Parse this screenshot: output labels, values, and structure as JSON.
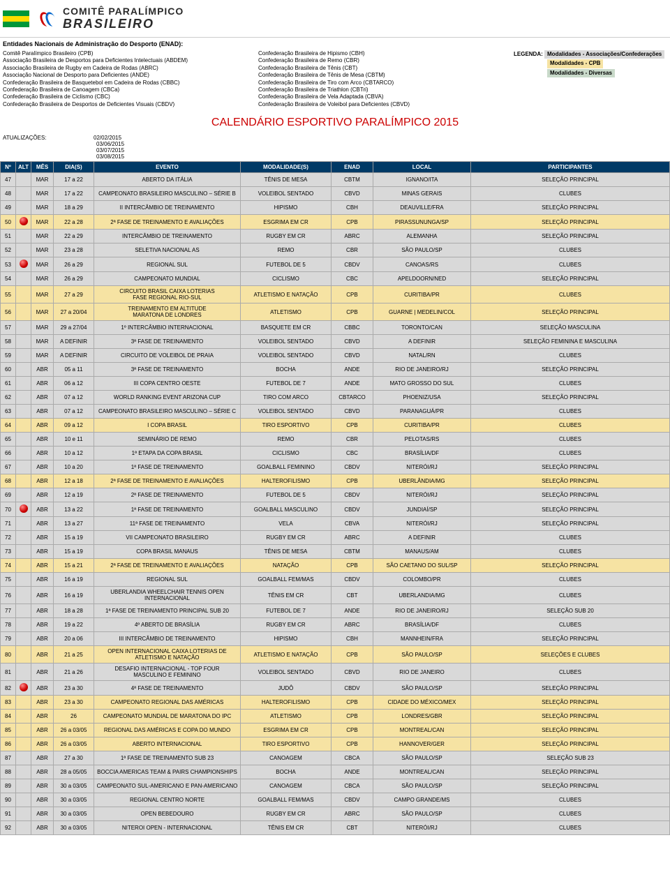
{
  "logo": {
    "line1": "COMITÊ PARALÍMPICO",
    "line2": "BRASILEIRO"
  },
  "flag_colors": [
    "#009739",
    "#fedd00",
    "#009739"
  ],
  "section_title": "Entidades Nacionais de Administração do Desporto (ENAD):",
  "entities_col1": [
    "Comitê Paralímpico Brasileiro (CPB)",
    "Associação Brasileira de Desportos para Deficientes Intelectuais (ABDEM)",
    "Associação Brasileira de Rugby em Cadeira de Rodas (ABRC)",
    "Associação Nacional de Desporto para Deficientes (ANDE)",
    "Confederação Brasileira de Basquetebol em Cadeira de Rodas (CBBC)",
    "Confederação Brasileira de Canoagem (CBCa)",
    "Confederação Brasileira de Ciclismo (CBC)",
    "Confederação Brasileira de Desportos de Deficientes Visuais (CBDV)"
  ],
  "entities_col2": [
    "Confederação Brasileira de Hipismo (CBH)",
    "Confederação Brasileira de Remo (CBR)",
    "Confederação Brasileira de Tênis (CBT)",
    "Confederação Brasileira de Tênis de Mesa (CBTM)",
    "Confederação Brasileira de Tiro com Arco (CBTARCO)",
    "Confederação Brasileira de Triathlon (CBTri)",
    "Confederação Brasileira de Vela Adaptada (CBVA)",
    "Confederação Brasileira de Voleibol para Deficientes (CBVD)"
  ],
  "legend_label": "LEGENDA:",
  "legend": [
    {
      "text": "Modalidades - Associações/Confederações",
      "bg": "#d9d9d9",
      "fg": "#000"
    },
    {
      "text": "Modalidades - CPB",
      "bg": "#f6e3a3",
      "fg": "#000"
    },
    {
      "text": "Modalidades - Diversas",
      "bg": "#c9daca",
      "fg": "#000"
    }
  ],
  "calendar_title": "CALENDÁRIO ESPORTIVO PARALÍMPICO 2015",
  "updates_label": "ATUALIZAÇÕES:",
  "updates": [
    "02/02/2015",
    "03/06/2015",
    "03/07/2015",
    "03/08/2015"
  ],
  "columns": [
    "Nº",
    "ALT",
    "MÊS",
    "DIA(S)",
    "EVENTO",
    "MODALIDADE(S)",
    "ENAD",
    "LOCAL",
    "PARTICIPANTES"
  ],
  "row_bgs": {
    "assoc": "#d9d9d9",
    "cpb": "#f6e3a3",
    "div": "#c9daca",
    "plain": "#ffffff"
  },
  "rows": [
    {
      "n": "47",
      "alt": false,
      "mes": "MAR",
      "dias": "17 a 22",
      "evento": "ABERTO DA ITÁLIA",
      "mod": "TÊNIS DE MESA",
      "enad": "CBTM",
      "local": "IGNANO/ITA",
      "part": "SELEÇÃO PRINCIPAL",
      "bg": "assoc"
    },
    {
      "n": "48",
      "alt": false,
      "mes": "MAR",
      "dias": "17 a 22",
      "evento": "CAMPEONATO BRASILEIRO MASCULINO – SÉRIE B",
      "mod": "VOLEIBOL SENTADO",
      "enad": "CBVD",
      "local": "MINAS GERAIS",
      "part": "CLUBES",
      "bg": "assoc"
    },
    {
      "n": "49",
      "alt": false,
      "mes": "MAR",
      "dias": "18 a 29",
      "evento": "II INTERCÂMBIO DE TREINAMENTO",
      "mod": "HIPISMO",
      "enad": "CBH",
      "local": "DEAUVILLE/FRA",
      "part": "SELEÇÃO PRINCIPAL",
      "bg": "assoc"
    },
    {
      "n": "50",
      "alt": true,
      "mes": "MAR",
      "dias": "22 a 28",
      "evento": "2ª FASE DE TREINAMENTO E AVALIAÇÕES",
      "mod": "ESGRIMA EM CR",
      "enad": "CPB",
      "local": "PIRASSUNUNGA/SP",
      "part": "SELEÇÃO PRINCIPAL",
      "bg": "cpb"
    },
    {
      "n": "51",
      "alt": false,
      "mes": "MAR",
      "dias": "22 a 29",
      "evento": "INTERCÂMBIO DE TREINAMENTO",
      "mod": "RUGBY EM CR",
      "enad": "ABRC",
      "local": "ALEMANHA",
      "part": "SELEÇÃO PRINCIPAL",
      "bg": "assoc"
    },
    {
      "n": "52",
      "alt": false,
      "mes": "MAR",
      "dias": "23 a 28",
      "evento": "SELETIVA NACIONAL AS",
      "mod": "REMO",
      "enad": "CBR",
      "local": "SÃO PAULO/SP",
      "part": "CLUBES",
      "bg": "assoc"
    },
    {
      "n": "53",
      "alt": true,
      "mes": "MAR",
      "dias": "26 a 29",
      "evento": "REGIONAL SUL",
      "mod": "FUTEBOL DE 5",
      "enad": "CBDV",
      "local": "CANOAS/RS",
      "part": "CLUBES",
      "bg": "assoc"
    },
    {
      "n": "54",
      "alt": false,
      "mes": "MAR",
      "dias": "26 a 29",
      "evento": "CAMPEONATO MUNDIAL",
      "mod": "CICLISMO",
      "enad": "CBC",
      "local": "APELDOORN/NED",
      "part": "SELEÇÃO PRINCIPAL",
      "bg": "assoc"
    },
    {
      "n": "55",
      "alt": false,
      "mes": "MAR",
      "dias": "27 a 29",
      "evento": "CIRCUITO BRASIL CAIXA LOTERIAS\nFASE REGIONAL RIO-SUL",
      "mod": "ATLETISMO E NATAÇÃO",
      "enad": "CPB",
      "local": "CURITIBA/PR",
      "part": "CLUBES",
      "bg": "cpb"
    },
    {
      "n": "56",
      "alt": false,
      "mes": "MAR",
      "dias": "27 a 20/04",
      "evento": "TREINAMENTO EM ALTITUDE\nMARATONA DE LONDRES",
      "mod": "ATLETISMO",
      "enad": "CPB",
      "local": "GUARNE | MEDELIN/COL",
      "part": "SELEÇÃO PRINCIPAL",
      "bg": "cpb"
    },
    {
      "n": "57",
      "alt": false,
      "mes": "MAR",
      "dias": "29 a 27/04",
      "evento": "1º INTERCÂMBIO INTERNACIONAL",
      "mod": "BASQUETE EM CR",
      "enad": "CBBC",
      "local": "TORONTO/CAN",
      "part": "SELEÇÃO MASCULINA",
      "bg": "assoc"
    },
    {
      "n": "58",
      "alt": false,
      "mes": "MAR",
      "dias": "A DEFINIR",
      "evento": "3ª FASE DE TREINAMENTO",
      "mod": "VOLEIBOL SENTADO",
      "enad": "CBVD",
      "local": "A DEFINIR",
      "part": "SELEÇÃO FEMININA E MASCULINA",
      "bg": "assoc"
    },
    {
      "n": "59",
      "alt": false,
      "mes": "MAR",
      "dias": "A DEFINIR",
      "evento": "CIRCUITO DE VOLEIBOL DE PRAIA",
      "mod": "VOLEIBOL SENTADO",
      "enad": "CBVD",
      "local": "NATAL/RN",
      "part": "CLUBES",
      "bg": "assoc"
    },
    {
      "n": "60",
      "alt": false,
      "mes": "ABR",
      "dias": "05 a 11",
      "evento": "3ª FASE DE TREINAMENTO",
      "mod": "BOCHA",
      "enad": "ANDE",
      "local": "RIO DE JANEIRO/RJ",
      "part": "SELEÇÃO PRINCIPAL",
      "bg": "assoc"
    },
    {
      "n": "61",
      "alt": false,
      "mes": "ABR",
      "dias": "06 a 12",
      "evento": "III COPA CENTRO OESTE",
      "mod": "FUTEBOL DE 7",
      "enad": "ANDE",
      "local": "MATO GROSSO DO SUL",
      "part": "CLUBES",
      "bg": "assoc"
    },
    {
      "n": "62",
      "alt": false,
      "mes": "ABR",
      "dias": "07 a 12",
      "evento": "WORLD RANKING EVENT ARIZONA CUP",
      "mod": "TIRO COM ARCO",
      "enad": "CBTARCO",
      "local": "PHOENIZ/USA",
      "part": "SELEÇÃO PRINCIPAL",
      "bg": "assoc"
    },
    {
      "n": "63",
      "alt": false,
      "mes": "ABR",
      "dias": "07 a 12",
      "evento": "CAMPEONATO BRASILEIRO MASCULINO – SÉRIE C",
      "mod": "VOLEIBOL SENTADO",
      "enad": "CBVD",
      "local": "PARANAGUÁ/PR",
      "part": "CLUBES",
      "bg": "assoc"
    },
    {
      "n": "64",
      "alt": false,
      "mes": "ABR",
      "dias": "09 a 12",
      "evento": "I COPA BRASIL",
      "mod": "TIRO ESPORTIVO",
      "enad": "CPB",
      "local": "CURITIBA/PR",
      "part": "CLUBES",
      "bg": "cpb"
    },
    {
      "n": "65",
      "alt": false,
      "mes": "ABR",
      "dias": "10 e 11",
      "evento": "SEMINÁRIO DE REMO",
      "mod": "REMO",
      "enad": "CBR",
      "local": "PELOTAS/RS",
      "part": "CLUBES",
      "bg": "assoc"
    },
    {
      "n": "66",
      "alt": false,
      "mes": "ABR",
      "dias": "10 a 12",
      "evento": "1ª ETAPA DA COPA BRASIL",
      "mod": "CICLISMO",
      "enad": "CBC",
      "local": "BRASÍLIA/DF",
      "part": "CLUBES",
      "bg": "assoc"
    },
    {
      "n": "67",
      "alt": false,
      "mes": "ABR",
      "dias": "10 a 20",
      "evento": "1ª FASE DE TREINAMENTO",
      "mod": "GOALBALL FEMININO",
      "enad": "CBDV",
      "local": "NITERÓI/RJ",
      "part": "SELEÇÃO PRINCIPAL",
      "bg": "assoc"
    },
    {
      "n": "68",
      "alt": false,
      "mes": "ABR",
      "dias": "12 a 18",
      "evento": "2ª FASE DE TREINAMENTO E AVALIAÇÕES",
      "mod": "HALTEROFILISMO",
      "enad": "CPB",
      "local": "UBERLÂNDIA/MG",
      "part": "SELEÇÃO PRINCIPAL",
      "bg": "cpb"
    },
    {
      "n": "69",
      "alt": false,
      "mes": "ABR",
      "dias": "12 a 19",
      "evento": "2ª FASE DE TREINAMENTO",
      "mod": "FUTEBOL DE 5",
      "enad": "CBDV",
      "local": "NITERÓI/RJ",
      "part": "SELEÇÃO PRINCIPAL",
      "bg": "assoc"
    },
    {
      "n": "70",
      "alt": true,
      "mes": "ABR",
      "dias": "13 a 22",
      "evento": "1ª FASE DE TREINAMENTO",
      "mod": "GOALBALL MASCULINO",
      "enad": "CBDV",
      "local": "JUNDIAÍ/SP",
      "part": "SELEÇÃO PRINCIPAL",
      "bg": "assoc"
    },
    {
      "n": "71",
      "alt": false,
      "mes": "ABR",
      "dias": "13 a 27",
      "evento": "11ª FASE DE TREINAMENTO",
      "mod": "VELA",
      "enad": "CBVA",
      "local": "NITERÓI/RJ",
      "part": "SELEÇÃO PRINCIPAL",
      "bg": "assoc"
    },
    {
      "n": "72",
      "alt": false,
      "mes": "ABR",
      "dias": "15 a 19",
      "evento": "VII CAMPEONATO BRASILEIRO",
      "mod": "RUGBY EM CR",
      "enad": "ABRC",
      "local": "A DEFINIR",
      "part": "CLUBES",
      "bg": "assoc"
    },
    {
      "n": "73",
      "alt": false,
      "mes": "ABR",
      "dias": "15 a 19",
      "evento": "COPA BRASIL MANAUS",
      "mod": "TÊNIS DE MESA",
      "enad": "CBTM",
      "local": "MANAUS/AM",
      "part": "CLUBES",
      "bg": "assoc"
    },
    {
      "n": "74",
      "alt": false,
      "mes": "ABR",
      "dias": "15 a 21",
      "evento": "2ª FASE DE TREINAMENTO E AVALIAÇÕES",
      "mod": "NATAÇÃO",
      "enad": "CPB",
      "local": "SÃO CAETANO DO SUL/SP",
      "part": "SELEÇÃO PRINCIPAL",
      "bg": "cpb"
    },
    {
      "n": "75",
      "alt": false,
      "mes": "ABR",
      "dias": "16 a 19",
      "evento": "REGIONAL SUL",
      "mod": "GOALBALL FEM/MAS",
      "enad": "CBDV",
      "local": "COLOMBO/PR",
      "part": "CLUBES",
      "bg": "assoc"
    },
    {
      "n": "76",
      "alt": false,
      "mes": "ABR",
      "dias": "16 a 19",
      "evento": "UBERLANDIA WHEELCHAIR TENNIS OPEN\nINTERNACIONAL",
      "mod": "TÊNIS EM CR",
      "enad": "CBT",
      "local": "UBERLANDIA/MG",
      "part": "CLUBES",
      "bg": "assoc"
    },
    {
      "n": "77",
      "alt": false,
      "mes": "ABR",
      "dias": "18 a 28",
      "evento": "1ª FASE DE TREINAMENTO PRINCIPAL SUB 20",
      "mod": "FUTEBOL DE 7",
      "enad": "ANDE",
      "local": "RIO DE JANEIRO/RJ",
      "part": "SELEÇÃO SUB 20",
      "bg": "assoc"
    },
    {
      "n": "78",
      "alt": false,
      "mes": "ABR",
      "dias": "19 a 22",
      "evento": "4º ABERTO DE BRASÍLIA",
      "mod": "RUGBY EM CR",
      "enad": "ABRC",
      "local": "BRASÍLIA/DF",
      "part": "CLUBES",
      "bg": "assoc"
    },
    {
      "n": "79",
      "alt": false,
      "mes": "ABR",
      "dias": "20 a 06",
      "evento": "III INTERCÂMBIO DE TREINAMENTO",
      "mod": "HIPISMO",
      "enad": "CBH",
      "local": "MANNHEIN/FRA",
      "part": "SELEÇÃO PRINCIPAL",
      "bg": "assoc"
    },
    {
      "n": "80",
      "alt": false,
      "mes": "ABR",
      "dias": "21 a 25",
      "evento": "OPEN INTERNACIONAL CAIXA LOTERIAS DE\nATLETISMO E NATAÇÃO",
      "mod": "ATLETISMO E NATAÇÃO",
      "enad": "CPB",
      "local": "SÃO PAULO/SP",
      "part": "SELEÇÕES E CLUBES",
      "bg": "cpb"
    },
    {
      "n": "81",
      "alt": false,
      "mes": "ABR",
      "dias": "21 a 26",
      "evento": "DESAFIO INTERNACIONAL - TOP FOUR\nMASCULINO E FEMININO",
      "mod": "VOLEIBOL SENTADO",
      "enad": "CBVD",
      "local": "RIO DE JANEIRO",
      "part": "CLUBES",
      "bg": "assoc"
    },
    {
      "n": "82",
      "alt": true,
      "mes": "ABR",
      "dias": "23 a 30",
      "evento": "4ª FASE DE TREINAMENTO",
      "mod": "JUDÔ",
      "enad": "CBDV",
      "local": "SÃO PAULO/SP",
      "part": "SELEÇÃO PRINCIPAL",
      "bg": "assoc"
    },
    {
      "n": "83",
      "alt": false,
      "mes": "ABR",
      "dias": "23 a 30",
      "evento": "CAMPEONATO REGIONAL DAS AMÉRICAS",
      "mod": "HALTEROFILISMO",
      "enad": "CPB",
      "local": "CIDADE DO MÉXICO/MEX",
      "part": "SELEÇÃO PRINCIPAL",
      "bg": "cpb"
    },
    {
      "n": "84",
      "alt": false,
      "mes": "ABR",
      "dias": "26",
      "evento": "CAMPEONATO MUNDIAL DE MARATONA DO IPC",
      "mod": "ATLETISMO",
      "enad": "CPB",
      "local": "LONDRES/GBR",
      "part": "SELEÇÃO PRINCIPAL",
      "bg": "cpb"
    },
    {
      "n": "85",
      "alt": false,
      "mes": "ABR",
      "dias": "26 a 03/05",
      "evento": "REGIONAL DAS AMÉRICAS E COPA DO MUNDO",
      "mod": "ESGRIMA EM CR",
      "enad": "CPB",
      "local": "MONTREAL/CAN",
      "part": "SELEÇÃO PRINCIPAL",
      "bg": "cpb"
    },
    {
      "n": "86",
      "alt": false,
      "mes": "ABR",
      "dias": "26 a 03/05",
      "evento": "ABERTO INTERNACIONAL",
      "mod": "TIRO ESPORTIVO",
      "enad": "CPB",
      "local": "HANNOVER/GER",
      "part": "SELEÇÃO PRINCIPAL",
      "bg": "cpb"
    },
    {
      "n": "87",
      "alt": false,
      "mes": "ABR",
      "dias": "27 a 30",
      "evento": "1ª FASE DE TREINAMENTO SUB 23",
      "mod": "CANOAGEM",
      "enad": "CBCA",
      "local": "SÃO PAULO/SP",
      "part": "SELEÇÃO SUB 23",
      "bg": "assoc"
    },
    {
      "n": "88",
      "alt": false,
      "mes": "ABR",
      "dias": "28 a 05/05",
      "evento": "BOCCIA AMERICAS TEAM & PAIRS CHAMPIONSHIPS",
      "mod": "BOCHA",
      "enad": "ANDE",
      "local": "MONTREAL/CAN",
      "part": "SELEÇÃO PRINCIPAL",
      "bg": "assoc"
    },
    {
      "n": "89",
      "alt": false,
      "mes": "ABR",
      "dias": "30 a 03/05",
      "evento": "CAMPEONATO SUL-AMERICANO E PAN-AMERICANO",
      "mod": "CANOAGEM",
      "enad": "CBCA",
      "local": "SÃO PAULO/SP",
      "part": "SELEÇÃO PRINCIPAL",
      "bg": "assoc"
    },
    {
      "n": "90",
      "alt": false,
      "mes": "ABR",
      "dias": "30 a 03/05",
      "evento": "REGIONAL CENTRO NORTE",
      "mod": "GOALBALL FEM/MAS",
      "enad": "CBDV",
      "local": "CAMPO GRANDE/MS",
      "part": "CLUBES",
      "bg": "assoc"
    },
    {
      "n": "91",
      "alt": false,
      "mes": "ABR",
      "dias": "30 a 03/05",
      "evento": "OPEN BEBEDOURO",
      "mod": "RUGBY EM CR",
      "enad": "ABRC",
      "local": "SÃO PAULO/SP",
      "part": "CLUBES",
      "bg": "assoc"
    },
    {
      "n": "92",
      "alt": false,
      "mes": "ABR",
      "dias": "30 a 03/05",
      "evento": "NITEROI OPEN - INTERNACIONAL",
      "mod": "TÊNIS EM CR",
      "enad": "CBT",
      "local": "NITERÓI/RJ",
      "part": "CLUBES",
      "bg": "assoc"
    }
  ]
}
